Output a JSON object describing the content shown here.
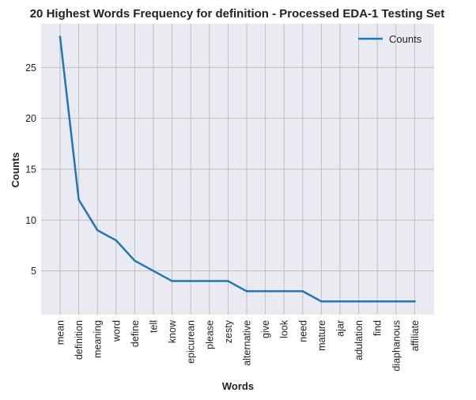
{
  "chart_data": {
    "type": "line",
    "title": "20 Highest Words Frequency for definition - Processed EDA-1 Testing Set",
    "xlabel": "Words",
    "ylabel": "Counts",
    "categories": [
      "mean",
      "definition",
      "meaning",
      "word",
      "define",
      "tell",
      "know",
      "epicurean",
      "please",
      "zesty",
      "alternative",
      "give",
      "look",
      "need",
      "mature",
      "ajar",
      "adulation",
      "find",
      "diaphanous",
      "affiliate"
    ],
    "series": [
      {
        "name": "Counts",
        "color": "#1f77b4",
        "values": [
          28,
          12,
          9,
          8,
          6,
          5,
          4,
          4,
          4,
          4,
          3,
          3,
          3,
          3,
          2,
          2,
          2,
          2,
          2,
          2
        ]
      }
    ],
    "ylim": [
      0.7,
      29.3
    ],
    "yticks": [
      5,
      10,
      15,
      20,
      25
    ],
    "grid": true,
    "legend_position": "top-right",
    "colors": {
      "plot_background": "#eaeaf2",
      "grid": "#bfbfbf",
      "line": "#1f77b4"
    }
  }
}
